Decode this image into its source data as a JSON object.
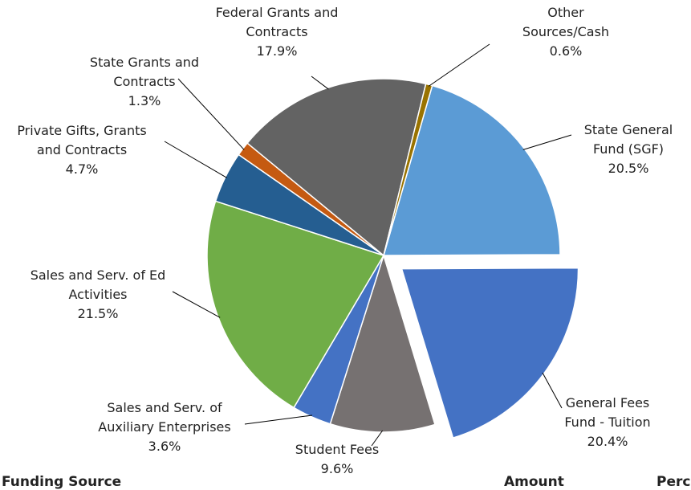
{
  "chart_data": {
    "type": "pie",
    "categories": [
      "State General Fund (SGF)",
      "General Fees Fund - Tuition",
      "Student Fees",
      "Sales and Serv. of Auxiliary Enterprises",
      "Sales and Serv. of Ed Activities",
      "Private Gifts, Grants and Contracts",
      "State Grants and Contracts",
      "Federal Grants and Contracts",
      "Other Sources/Cash"
    ],
    "values": [
      20.5,
      20.4,
      9.6,
      3.6,
      21.5,
      4.7,
      1.3,
      17.9,
      0.6
    ],
    "value_labels": [
      "20.5%",
      "20.4%",
      "9.6%",
      "3.6%",
      "21.5%",
      "4.7%",
      "1.3%",
      "17.9%",
      "0.6%"
    ],
    "colors": [
      "#5b9bd5",
      "#4472c4",
      "#767171",
      "#4472c4",
      "#70ad47",
      "#255e91",
      "#c55a11",
      "#636363",
      "#997300"
    ]
  },
  "table": {
    "headers": [
      "Funding Source",
      "Amount",
      "Percent"
    ]
  }
}
